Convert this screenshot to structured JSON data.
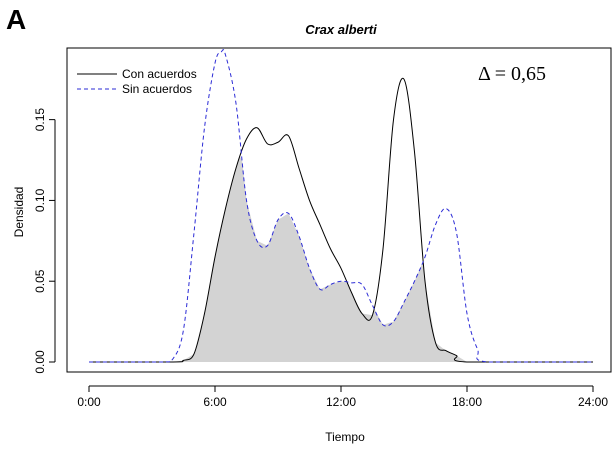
{
  "panel_letter": "A",
  "chart_data": {
    "type": "area",
    "title": "Crax alberti",
    "xlabel": "Tiempo",
    "ylabel": "Densidad",
    "xlim": [
      0,
      24
    ],
    "ylim": [
      0,
      0.19
    ],
    "x_ticks": [
      {
        "value": 0,
        "label": "0:00"
      },
      {
        "value": 6,
        "label": "6:00"
      },
      {
        "value": 12,
        "label": "12:00"
      },
      {
        "value": 18,
        "label": "18:00"
      },
      {
        "value": 24,
        "label": "24:00"
      }
    ],
    "y_ticks": [
      {
        "value": 0,
        "label": "0.00"
      },
      {
        "value": 0.05,
        "label": "0.05"
      },
      {
        "value": 0.1,
        "label": "0.10"
      },
      {
        "value": 0.15,
        "label": "0.15"
      }
    ],
    "legend": {
      "position": "top-left",
      "entries": [
        {
          "name": "Con acuerdos",
          "color": "#000000",
          "style": "solid"
        },
        {
          "name": "Sin acuerdos",
          "color": "#2b2bd6",
          "style": "dashed"
        }
      ]
    },
    "annotation": "Δ = 0,65",
    "overlap_fill": "#d3d3d3",
    "series": [
      {
        "name": "Con acuerdos",
        "color": "#000000",
        "style": "solid",
        "x": [
          0,
          4,
          4.5,
          5,
          5.5,
          6,
          6.5,
          7,
          7.5,
          8,
          8.5,
          9,
          9.5,
          10,
          10.5,
          11,
          11.5,
          12,
          12.5,
          13,
          13.5,
          14,
          14.5,
          15,
          15.5,
          16,
          16.5,
          17,
          17.5,
          18,
          24
        ],
        "values": [
          0,
          0,
          0.001,
          0.005,
          0.03,
          0.065,
          0.095,
          0.12,
          0.138,
          0.145,
          0.135,
          0.136,
          0.14,
          0.12,
          0.1,
          0.085,
          0.07,
          0.058,
          0.043,
          0.03,
          0.029,
          0.07,
          0.15,
          0.175,
          0.13,
          0.05,
          0.012,
          0.007,
          0.004,
          0,
          0
        ]
      },
      {
        "name": "Sin acuerdos",
        "color": "#2b2bd6",
        "style": "dashed",
        "x": [
          0,
          3.5,
          4,
          4.5,
          5,
          5.5,
          6,
          6.3,
          6.5,
          7,
          7.5,
          8,
          8.5,
          9,
          9.5,
          10,
          10.5,
          11,
          11.5,
          12,
          12.5,
          13,
          13.5,
          14,
          14.5,
          15,
          15.5,
          16,
          16.5,
          17,
          17.5,
          18,
          18.5,
          19,
          24
        ],
        "values": [
          0,
          0,
          0.002,
          0.02,
          0.08,
          0.145,
          0.185,
          0.192,
          0.19,
          0.16,
          0.1,
          0.075,
          0.072,
          0.088,
          0.092,
          0.078,
          0.058,
          0.045,
          0.048,
          0.05,
          0.049,
          0.048,
          0.035,
          0.023,
          0.025,
          0.037,
          0.05,
          0.065,
          0.085,
          0.095,
          0.08,
          0.03,
          0.008,
          0,
          0
        ]
      }
    ]
  }
}
